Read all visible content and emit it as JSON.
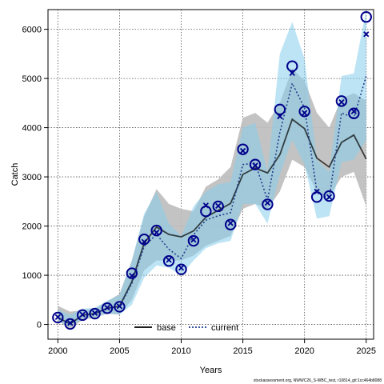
{
  "chart_data": {
    "type": "line",
    "xlabel": "Years",
    "ylabel": "Catch",
    "xlim": [
      1999.2,
      2025.6
    ],
    "ylim": [
      -300,
      6400
    ],
    "x_ticks": [
      2000,
      2005,
      2010,
      2015,
      2020,
      2025
    ],
    "y_ticks": [
      0,
      1000,
      2000,
      3000,
      4000,
      5000,
      6000
    ],
    "grid": true,
    "legend_position": "bottom-center",
    "years": [
      2000,
      2001,
      2002,
      2003,
      2004,
      2005,
      2006,
      2007,
      2008,
      2009,
      2010,
      2011,
      2012,
      2013,
      2014,
      2015,
      2016,
      2017,
      2018,
      2019,
      2020,
      2021,
      2022,
      2023,
      2024,
      2025
    ],
    "observed": [
      140,
      10,
      190,
      220,
      330,
      360,
      1040,
      1730,
      1910,
      1290,
      1120,
      1700,
      2300,
      2400,
      2030,
      3560,
      3250,
      2440,
      4370,
      5250,
      4330,
      2590,
      2610,
      4540,
      4290,
      6250
    ],
    "series": [
      {
        "name": "base",
        "color": "#000000",
        "band_color": "#bdbdbd",
        "values": [
          140,
          10,
          190,
          220,
          330,
          370,
          870,
          1650,
          1980,
          1830,
          1780,
          1900,
          2180,
          2320,
          2460,
          3050,
          3180,
          3080,
          3450,
          4170,
          3980,
          3380,
          3200,
          3700,
          3850,
          3360
        ],
        "lower": [
          80,
          -100,
          100,
          130,
          220,
          200,
          500,
          1100,
          1300,
          1300,
          1300,
          1400,
          1600,
          1700,
          1800,
          2350,
          2450,
          2350,
          2700,
          3350,
          3200,
          2700,
          2600,
          3000,
          3100,
          2400
        ],
        "upper": [
          380,
          260,
          290,
          320,
          470,
          620,
          1300,
          2200,
          2750,
          2450,
          2350,
          2300,
          2800,
          2950,
          3200,
          4200,
          4300,
          4100,
          4500,
          5200,
          4950,
          4300,
          4000,
          4600,
          4700,
          4550
        ]
      },
      {
        "name": "current",
        "color": "#1f3f8f",
        "band_color": "#87ceeb",
        "values": [
          140,
          10,
          190,
          220,
          330,
          360,
          830,
          1590,
          1830,
          1530,
          1340,
          1820,
          2120,
          2210,
          2270,
          3250,
          3280,
          2530,
          3900,
          4900,
          4400,
          2700,
          2550,
          4300,
          4200,
          5050
        ],
        "lower": [
          80,
          -50,
          120,
          150,
          220,
          200,
          400,
          950,
          1200,
          1150,
          1000,
          1300,
          1550,
          1650,
          1700,
          2450,
          2450,
          2050,
          3050,
          3750,
          3250,
          2150,
          2200,
          3300,
          3350,
          3750
        ],
        "upper": [
          300,
          200,
          320,
          340,
          480,
          600,
          1300,
          2250,
          2700,
          2050,
          1800,
          2400,
          2700,
          2850,
          2900,
          4000,
          4100,
          3100,
          5500,
          6150,
          5400,
          3350,
          3100,
          5050,
          5100,
          6400
        ]
      }
    ],
    "predicted_marks": [
      150,
      30,
      200,
      230,
      340,
      370,
      990,
      1680,
      1870,
      1310,
      1150,
      1720,
      2420,
      2410,
      2060,
      3530,
      3230,
      2470,
      4230,
      5110,
      4300,
      2700,
      2590,
      4520,
      4330,
      5900
    ],
    "footnote": "stockassessment.org, NWWC26_S-WBC_test, r10814_git:1cc464b8088"
  }
}
